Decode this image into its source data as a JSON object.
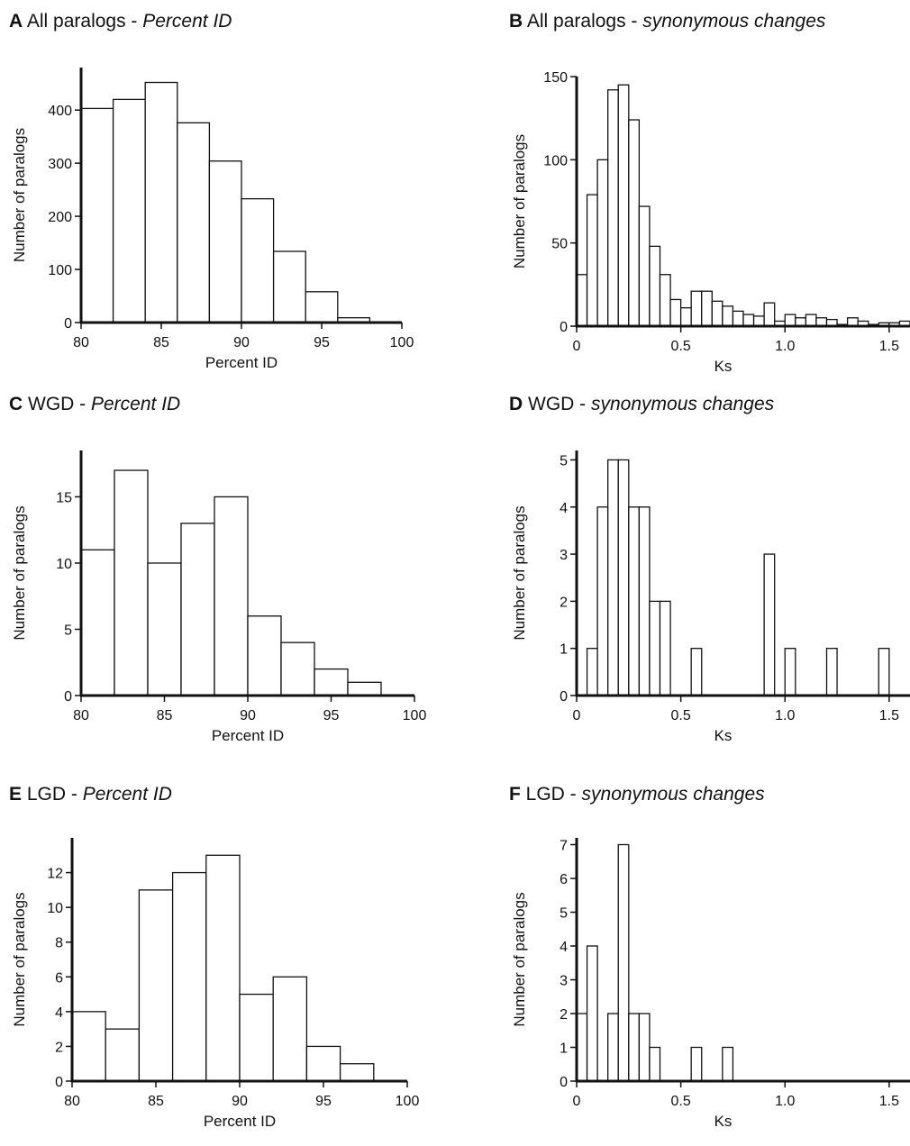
{
  "chart_data": [
    {
      "id": "A",
      "type": "bar",
      "title": {
        "letter": "A",
        "main": "All paralogs - ",
        "italic": "Percent ID"
      },
      "xlabel": "Percent ID",
      "ylabel": "Number of paralogs",
      "xlim": [
        80,
        100
      ],
      "ylim": [
        0,
        480
      ],
      "xticks": [
        80,
        85,
        90,
        95,
        100
      ],
      "yticks": [
        0,
        100,
        200,
        300,
        400
      ],
      "bin_width": 2,
      "bins": [
        {
          "x0": 80,
          "x1": 82,
          "value": 403
        },
        {
          "x0": 82,
          "x1": 84,
          "value": 420
        },
        {
          "x0": 84,
          "x1": 86,
          "value": 452
        },
        {
          "x0": 86,
          "x1": 88,
          "value": 376
        },
        {
          "x0": 88,
          "x1": 90,
          "value": 304
        },
        {
          "x0": 90,
          "x1": 92,
          "value": 233
        },
        {
          "x0": 92,
          "x1": 94,
          "value": 134
        },
        {
          "x0": 94,
          "x1": 96,
          "value": 58
        },
        {
          "x0": 96,
          "x1": 98,
          "value": 9
        }
      ]
    },
    {
      "id": "B",
      "type": "bar",
      "title": {
        "letter": "B",
        "main": "All paralogs - ",
        "italic": "synonymous changes"
      },
      "xlabel": "Ks",
      "ylabel": "Number of paralogs",
      "xlim": [
        0,
        1.6
      ],
      "ylim": [
        0,
        150
      ],
      "xticks": [
        0,
        0.5,
        1.0,
        1.5
      ],
      "xtick_labels": [
        "0",
        "0.5",
        "1.0",
        "1.5"
      ],
      "yticks": [
        0,
        50,
        100,
        150
      ],
      "bins": [
        {
          "x0": 0.0,
          "x1": 0.05,
          "value": 31
        },
        {
          "x0": 0.05,
          "x1": 0.1,
          "value": 79
        },
        {
          "x0": 0.1,
          "x1": 0.15,
          "value": 100
        },
        {
          "x0": 0.15,
          "x1": 0.2,
          "value": 142
        },
        {
          "x0": 0.2,
          "x1": 0.25,
          "value": 145
        },
        {
          "x0": 0.25,
          "x1": 0.3,
          "value": 124
        },
        {
          "x0": 0.3,
          "x1": 0.35,
          "value": 72
        },
        {
          "x0": 0.35,
          "x1": 0.4,
          "value": 48
        },
        {
          "x0": 0.4,
          "x1": 0.45,
          "value": 31
        },
        {
          "x0": 0.45,
          "x1": 0.5,
          "value": 16
        },
        {
          "x0": 0.5,
          "x1": 0.55,
          "value": 11
        },
        {
          "x0": 0.55,
          "x1": 0.6,
          "value": 21
        },
        {
          "x0": 0.6,
          "x1": 0.65,
          "value": 21
        },
        {
          "x0": 0.65,
          "x1": 0.7,
          "value": 15
        },
        {
          "x0": 0.7,
          "x1": 0.75,
          "value": 12
        },
        {
          "x0": 0.75,
          "x1": 0.8,
          "value": 9
        },
        {
          "x0": 0.8,
          "x1": 0.85,
          "value": 7
        },
        {
          "x0": 0.85,
          "x1": 0.9,
          "value": 6
        },
        {
          "x0": 0.9,
          "x1": 0.95,
          "value": 14
        },
        {
          "x0": 0.95,
          "x1": 1.0,
          "value": 3
        },
        {
          "x0": 1.0,
          "x1": 1.05,
          "value": 7
        },
        {
          "x0": 1.05,
          "x1": 1.1,
          "value": 5
        },
        {
          "x0": 1.1,
          "x1": 1.15,
          "value": 7
        },
        {
          "x0": 1.15,
          "x1": 1.2,
          "value": 5
        },
        {
          "x0": 1.2,
          "x1": 1.25,
          "value": 4
        },
        {
          "x0": 1.25,
          "x1": 1.3,
          "value": 1
        },
        {
          "x0": 1.3,
          "x1": 1.35,
          "value": 5
        },
        {
          "x0": 1.35,
          "x1": 1.4,
          "value": 3
        },
        {
          "x0": 1.4,
          "x1": 1.45,
          "value": 1
        },
        {
          "x0": 1.45,
          "x1": 1.5,
          "value": 2
        },
        {
          "x0": 1.5,
          "x1": 1.55,
          "value": 2
        },
        {
          "x0": 1.55,
          "x1": 1.6,
          "value": 3
        }
      ]
    },
    {
      "id": "C",
      "type": "bar",
      "title": {
        "letter": "C",
        "main": "WGD - ",
        "italic": "Percent ID"
      },
      "xlabel": "Percent ID",
      "ylabel": "Number of paralogs",
      "xlim": [
        80,
        100
      ],
      "ylim": [
        0,
        18.5
      ],
      "xticks": [
        80,
        85,
        90,
        95,
        100
      ],
      "yticks": [
        0,
        5,
        10,
        15
      ],
      "bins": [
        {
          "x0": 80,
          "x1": 82,
          "value": 11
        },
        {
          "x0": 82,
          "x1": 84,
          "value": 17
        },
        {
          "x0": 84,
          "x1": 86,
          "value": 10
        },
        {
          "x0": 86,
          "x1": 88,
          "value": 13
        },
        {
          "x0": 88,
          "x1": 90,
          "value": 15
        },
        {
          "x0": 90,
          "x1": 92,
          "value": 6
        },
        {
          "x0": 92,
          "x1": 94,
          "value": 4
        },
        {
          "x0": 94,
          "x1": 96,
          "value": 2
        },
        {
          "x0": 96,
          "x1": 98,
          "value": 1
        }
      ]
    },
    {
      "id": "D",
      "type": "bar",
      "title": {
        "letter": "D",
        "main": "WGD - ",
        "italic": "synonymous changes"
      },
      "xlabel": "Ks",
      "ylabel": "Number of paralogs",
      "xlim": [
        0,
        1.6
      ],
      "ylim": [
        0,
        5.2
      ],
      "xticks": [
        0,
        0.5,
        1.0,
        1.5
      ],
      "xtick_labels": [
        "0",
        "0.5",
        "1.0",
        "1.5"
      ],
      "yticks": [
        0,
        1,
        2,
        3,
        4,
        5
      ],
      "bins": [
        {
          "x0": 0.05,
          "x1": 0.1,
          "value": 1
        },
        {
          "x0": 0.1,
          "x1": 0.15,
          "value": 4
        },
        {
          "x0": 0.15,
          "x1": 0.2,
          "value": 5
        },
        {
          "x0": 0.2,
          "x1": 0.25,
          "value": 5
        },
        {
          "x0": 0.25,
          "x1": 0.3,
          "value": 4
        },
        {
          "x0": 0.3,
          "x1": 0.35,
          "value": 4
        },
        {
          "x0": 0.35,
          "x1": 0.4,
          "value": 2
        },
        {
          "x0": 0.4,
          "x1": 0.45,
          "value": 2
        },
        {
          "x0": 0.55,
          "x1": 0.6,
          "value": 1
        },
        {
          "x0": 0.9,
          "x1": 0.95,
          "value": 3
        },
        {
          "x0": 1.0,
          "x1": 1.05,
          "value": 1
        },
        {
          "x0": 1.2,
          "x1": 1.25,
          "value": 1
        },
        {
          "x0": 1.45,
          "x1": 1.5,
          "value": 1
        }
      ]
    },
    {
      "id": "E",
      "type": "bar",
      "title": {
        "letter": "E",
        "main": "LGD - ",
        "italic": "Percent ID"
      },
      "xlabel": "Percent ID",
      "ylabel": "Number of paralogs",
      "xlim": [
        80,
        100
      ],
      "ylim": [
        0,
        14
      ],
      "xticks": [
        80,
        85,
        90,
        95,
        100
      ],
      "yticks": [
        0,
        2,
        4,
        6,
        8,
        10,
        12
      ],
      "bins": [
        {
          "x0": 80,
          "x1": 82,
          "value": 4
        },
        {
          "x0": 82,
          "x1": 84,
          "value": 3
        },
        {
          "x0": 84,
          "x1": 86,
          "value": 11
        },
        {
          "x0": 86,
          "x1": 88,
          "value": 12
        },
        {
          "x0": 88,
          "x1": 90,
          "value": 13
        },
        {
          "x0": 90,
          "x1": 92,
          "value": 5
        },
        {
          "x0": 92,
          "x1": 94,
          "value": 6
        },
        {
          "x0": 94,
          "x1": 96,
          "value": 2
        },
        {
          "x0": 96,
          "x1": 98,
          "value": 1
        }
      ]
    },
    {
      "id": "F",
      "type": "bar",
      "title": {
        "letter": "F",
        "main": "LGD - ",
        "italic": "synonymous changes"
      },
      "xlabel": "Ks",
      "ylabel": "Number of paralogs",
      "xlim": [
        0,
        1.6
      ],
      "ylim": [
        0,
        7.2
      ],
      "xticks": [
        0,
        0.5,
        1.0,
        1.5
      ],
      "xtick_labels": [
        "0",
        "0.5",
        "1.0",
        "1.5"
      ],
      "yticks": [
        0,
        1,
        2,
        3,
        4,
        5,
        6,
        7
      ],
      "bins": [
        {
          "x0": 0.0,
          "x1": 0.05,
          "value": 2
        },
        {
          "x0": 0.05,
          "x1": 0.1,
          "value": 4
        },
        {
          "x0": 0.15,
          "x1": 0.2,
          "value": 2
        },
        {
          "x0": 0.2,
          "x1": 0.25,
          "value": 7
        },
        {
          "x0": 0.25,
          "x1": 0.3,
          "value": 2
        },
        {
          "x0": 0.3,
          "x1": 0.35,
          "value": 2
        },
        {
          "x0": 0.35,
          "x1": 0.4,
          "value": 1
        },
        {
          "x0": 0.55,
          "x1": 0.6,
          "value": 1
        },
        {
          "x0": 0.7,
          "x1": 0.75,
          "value": 1
        }
      ]
    }
  ]
}
